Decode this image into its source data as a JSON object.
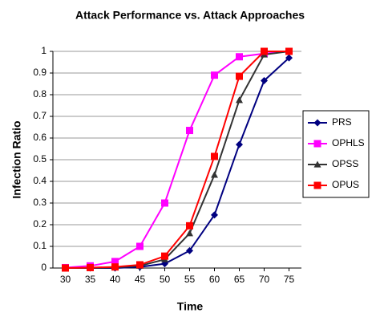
{
  "chart_data": {
    "type": "line",
    "title": "Attack Performance vs. Attack Approaches",
    "x_label": "Time",
    "y_label": "Infection Ratio",
    "x": [
      30,
      35,
      40,
      45,
      50,
      55,
      60,
      65,
      70,
      75
    ],
    "xlim": [
      27.5,
      77.5
    ],
    "xticks": [
      30,
      35,
      40,
      45,
      50,
      55,
      60,
      65,
      70,
      75
    ],
    "ylim": [
      0,
      1
    ],
    "yticks": [
      0,
      0.1,
      0.2,
      0.3,
      0.4,
      0.5,
      0.6,
      0.7,
      0.8,
      0.9,
      1
    ],
    "grid": true,
    "legend": "right",
    "series": [
      {
        "name": "PRS",
        "color": "#000080",
        "marker": "diamond",
        "values": [
          0,
          0,
          0,
          0.005,
          0.02,
          0.08,
          0.245,
          0.57,
          0.865,
          0.97
        ]
      },
      {
        "name": "OPHLS",
        "color": "#ff00ff",
        "marker": "square",
        "values": [
          0.002,
          0.01,
          0.03,
          0.1,
          0.3,
          0.635,
          0.89,
          0.975,
          0.99,
          1
        ]
      },
      {
        "name": "OPSS",
        "color": "#333333",
        "marker": "triangle",
        "values": [
          0,
          0,
          0.003,
          0.01,
          0.04,
          0.16,
          0.43,
          0.775,
          0.985,
          1
        ]
      },
      {
        "name": "OPUS",
        "color": "#ff0000",
        "marker": "square",
        "values": [
          0,
          0.002,
          0.005,
          0.015,
          0.055,
          0.195,
          0.515,
          0.885,
          1,
          1
        ]
      }
    ]
  }
}
